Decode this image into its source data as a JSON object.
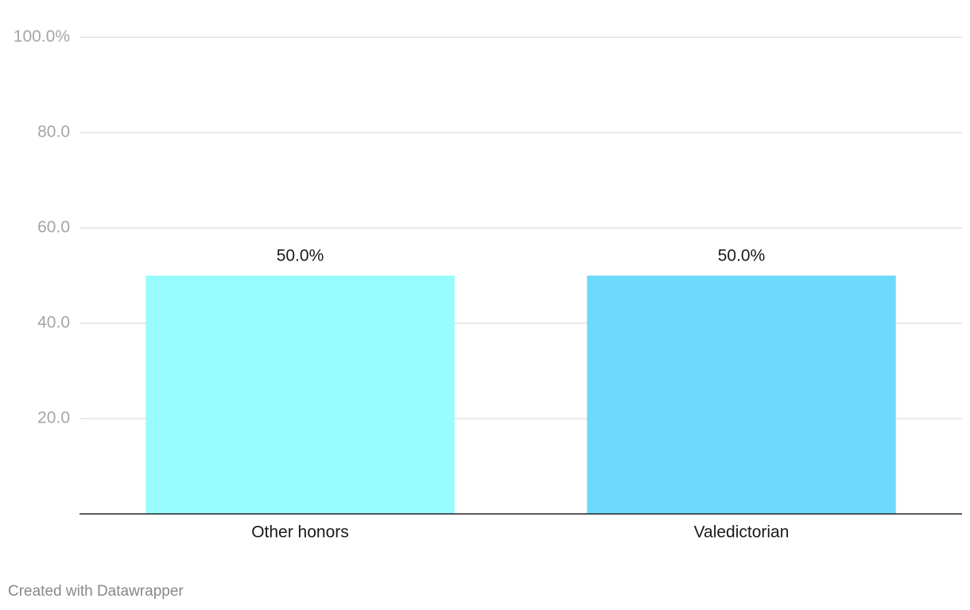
{
  "chart_data": {
    "type": "bar",
    "categories": [
      "Other honors",
      "Valedictorian"
    ],
    "values": [
      50,
      50
    ],
    "value_labels": [
      "50.0%",
      "50.0%"
    ],
    "colors": [
      "#98fbfe",
      "#6ddafc"
    ],
    "ylim": [
      0,
      100
    ],
    "yticks": [
      {
        "value": 20,
        "label": "20.0"
      },
      {
        "value": 40,
        "label": "40.0"
      },
      {
        "value": 60,
        "label": "60.0"
      },
      {
        "value": 80,
        "label": "80.0"
      },
      {
        "value": 100,
        "label": "100.0%"
      }
    ],
    "grid": true,
    "credit": "Created with Datawrapper"
  }
}
